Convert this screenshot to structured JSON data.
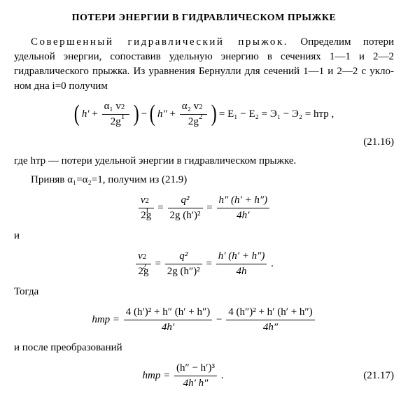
{
  "heading": "ПОТЕРИ ЭНЕРГИИ В ГИДРАВЛИЧЕСКОМ ПРЫЖКЕ",
  "p1_lead_spaced": "Совершенный гидравлический прыжок.",
  "p1_rest": " Определим потери удельной энергии, сопоставив удельную энергию в сечениях 1—1 и 2—2 гидравлического прыжка. Из уравнения Бернулли для сечений 1—1 и 2—2 с укло­ном дна i=0 получим",
  "eq1": {
    "t1_h": "h′",
    "t1_num": "α₁ v",
    "t1_sub": "1",
    "t1_sup": "2",
    "t1_den": "2g",
    "t2_h": "h″",
    "t2_num": "α₂ v",
    "t2_sub": "2",
    "t2_sup": "2",
    "t2_den": "2g",
    "rhs": "= E₁ − E₂ = Э₁ − Э₂ = hтр ,",
    "num": "(21.16)"
  },
  "p2": "где hтр — потери удельной энергии в гидравлическом прыжке.",
  "p3": "Приняв α₁=α₂=1, получим из (21.9)",
  "eq2": {
    "l_num": "v",
    "l_sub": "1",
    "l_sup": "2",
    "l_den": "2g",
    "m_num": "q²",
    "m_den": "2g (h′)²",
    "r_num": "h″ (h′ + h″)",
    "r_den": "4h′"
  },
  "p4": "и",
  "eq3": {
    "l_num": "v",
    "l_sub": "2",
    "l_sup": "2",
    "l_den": "2g",
    "m_num": "q²",
    "m_den": "2g (h″)²",
    "r_num": "h′ (h′ + h″)",
    "r_den": "4h",
    "period": " ."
  },
  "p5": "Тогда",
  "eq4": {
    "lhs": "hтр =",
    "a_num": "4 (h′)² + h″ (h′ + h″)",
    "a_den": "4h′",
    "minus": "−",
    "b_num": "4 (h″)² + h′ (h′ + h″)",
    "b_den": "4h″"
  },
  "p6": "и после преобразований",
  "eq5": {
    "lhs": "hтр =",
    "num": "(h″ − h′)³",
    "den": "4h′ h″",
    "period": " .",
    "eqnum": "(21.17)"
  }
}
